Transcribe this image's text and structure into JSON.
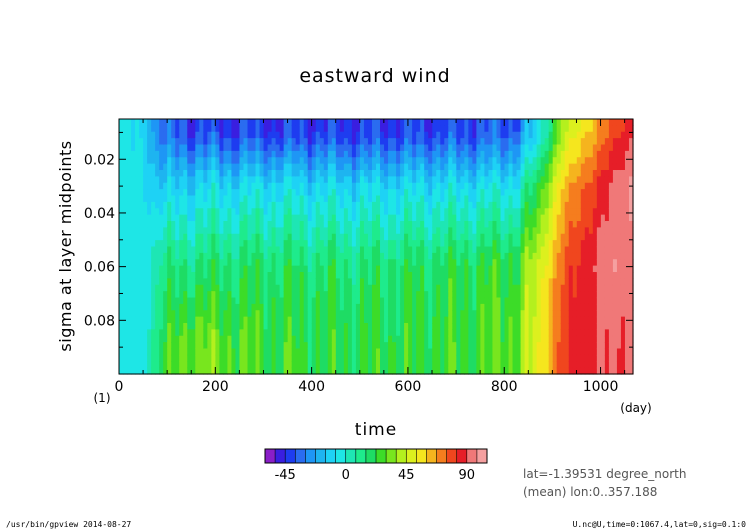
{
  "chart_data": {
    "type": "heatmap",
    "title": "eastward wind",
    "xlabel": "time",
    "x_unit": "(day)",
    "ylabel": "sigma at layer midpoints",
    "y_unit": "(1)",
    "xlim": [
      0,
      1067.4
    ],
    "ylim": [
      0.1,
      0.005
    ],
    "y_inverted": true,
    "x_ticks": [
      0,
      200,
      400,
      600,
      800,
      1000
    ],
    "x_tick_labels": [
      "0",
      "200",
      "400",
      "600",
      "800",
      "1000"
    ],
    "y_ticks": [
      0.02,
      0.04,
      0.06,
      0.08
    ],
    "y_tick_labels": [
      "0.02",
      "0.04",
      "0.06",
      "0.08"
    ],
    "colorbar": {
      "levels": [
        -60,
        -52.5,
        -45,
        -37.5,
        -30,
        -22.5,
        -15,
        -7.5,
        0,
        7.5,
        15,
        22.5,
        30,
        37.5,
        45,
        52.5,
        60,
        67.5,
        75,
        82.5,
        90,
        97.5,
        105,
        112.5
      ],
      "colors": [
        "#8a1ec8",
        "#3a1ee0",
        "#1e3cf0",
        "#2a6cf0",
        "#1e96f5",
        "#1eb4f0",
        "#1ed2f5",
        "#1ee6e6",
        "#1ee6b4",
        "#1eeb8c",
        "#1edc64",
        "#3cdc28",
        "#78e61e",
        "#b4f01e",
        "#dcf01e",
        "#f5e61e",
        "#f5b41e",
        "#f57d1e",
        "#f0461e",
        "#e61e28",
        "#f07878",
        "#f5a0a0"
      ],
      "tick_values": [
        -45,
        0,
        45,
        90
      ],
      "tick_labels": [
        "-45",
        "0",
        "45",
        "90"
      ]
    },
    "field_samples": {
      "description_time": [
        0,
        50,
        90,
        150,
        300,
        500,
        700,
        820,
        870,
        920,
        1000,
        1067
      ],
      "description_sigma": [
        0.01,
        0.03,
        0.06,
        0.09
      ],
      "values_mps": [
        [
          -5,
          -10,
          -35,
          -40,
          -42,
          -42,
          -40,
          -35,
          -10,
          40,
          70,
          90
        ],
        [
          -5,
          -5,
          -15,
          -10,
          -8,
          -10,
          -8,
          -5,
          20,
          60,
          85,
          100
        ],
        [
          -5,
          -5,
          10,
          15,
          18,
          15,
          20,
          25,
          45,
          75,
          95,
          95
        ],
        [
          -5,
          -5,
          20,
          35,
          25,
          22,
          25,
          30,
          50,
          80,
          90,
          90
        ]
      ]
    }
  },
  "annotations": {
    "lat_line": "lat=-1.39531 degree_north",
    "mean_line": "(mean) lon:0..357.188"
  },
  "footer": {
    "left": "/usr/bin/gpview  2014-08-27",
    "right": "U.nc@U,time=0:1067.4,lat=0,sig=0.1:0"
  }
}
